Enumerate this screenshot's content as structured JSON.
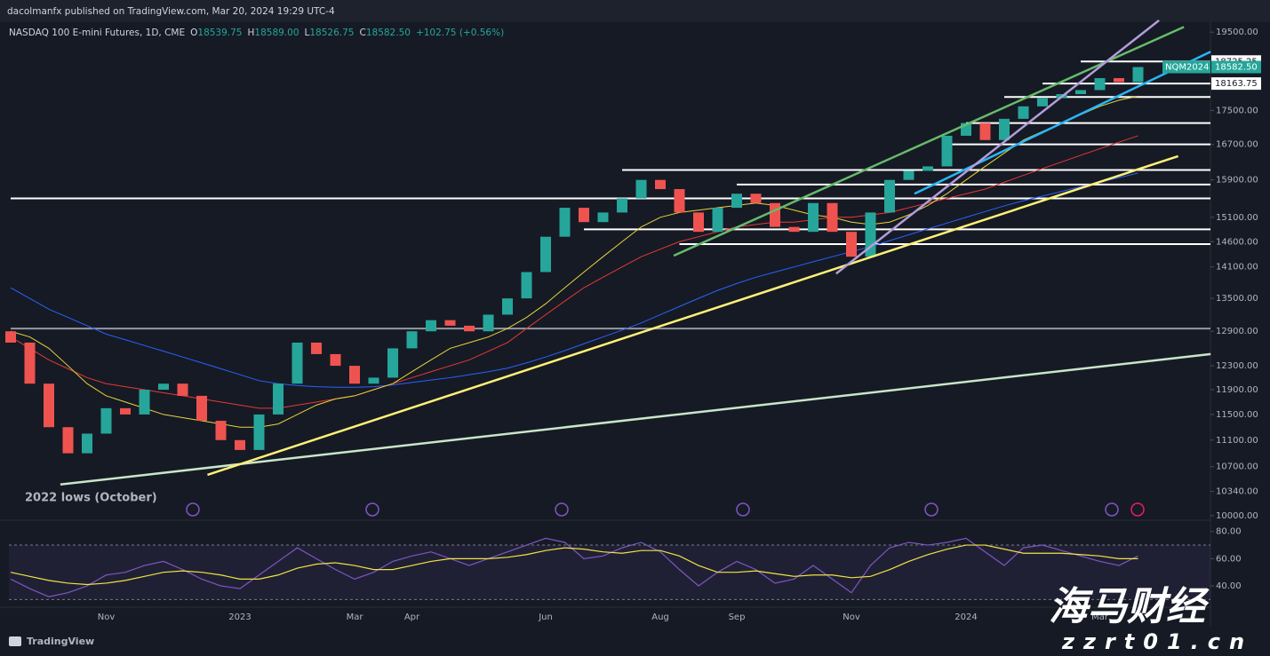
{
  "header": {
    "published": "dacolmanfx published on TradingView.com, Mar 20, 2024 19:29 UTC-4"
  },
  "footer": {
    "brand": "TradingView"
  },
  "watermark": {
    "title": "海马财经",
    "site": "zzrt01.cn"
  },
  "chart_data": [
    {
      "type": "candlestick",
      "title": "NASDAQ 100 E-mini Futures, 1D, CME",
      "ohlc_legend": [
        {
          "key": "O",
          "value": "18539.75"
        },
        {
          "key": "H",
          "value": "18589.00"
        },
        {
          "key": "L",
          "value": "18526.75"
        },
        {
          "key": "C",
          "value": "18582.50"
        }
      ],
      "change": "+102.75 (+0.56%)",
      "annotation": "2022 lows (October)",
      "categories": [
        null,
        null,
        null,
        null,
        null,
        "Nov",
        null,
        null,
        null,
        null,
        null,
        null,
        "2023",
        null,
        null,
        null,
        null,
        null,
        "Mar",
        null,
        null,
        "Apr",
        null,
        null,
        null,
        null,
        null,
        null,
        "Jun",
        null,
        null,
        null,
        null,
        null,
        "Aug",
        null,
        null,
        null,
        "Sep",
        null,
        null,
        null,
        null,
        null,
        "Nov",
        null,
        null,
        null,
        null,
        null,
        "2024",
        null,
        null,
        null,
        null,
        null,
        null,
        "Mar",
        null,
        null
      ],
      "open": [
        12900,
        12700,
        12000,
        11300,
        10900,
        11200,
        11600,
        11500,
        11900,
        12000,
        11800,
        11400,
        11100,
        10950,
        11500,
        12000,
        12700,
        12500,
        12300,
        12000,
        12100,
        12600,
        12900,
        13100,
        13000,
        12900,
        13200,
        13500,
        14000,
        14700,
        15300,
        15000,
        15200,
        15500,
        15900,
        15700,
        15200,
        14800,
        15300,
        15600,
        15400,
        14900,
        14800,
        15400,
        14800,
        14300,
        15200,
        15900,
        16100,
        16200,
        16900,
        17200,
        16800,
        17300,
        17600,
        17800,
        17900,
        18000,
        18300,
        18200
      ],
      "close": [
        12700,
        12000,
        11300,
        10900,
        11200,
        11600,
        11500,
        11900,
        12000,
        11800,
        11400,
        11100,
        10950,
        11500,
        12000,
        12700,
        12500,
        12300,
        12000,
        12100,
        12600,
        12900,
        13100,
        13000,
        12900,
        13200,
        13500,
        14000,
        14700,
        15300,
        15000,
        15200,
        15500,
        15900,
        15700,
        15200,
        14800,
        15300,
        15600,
        15400,
        14900,
        14800,
        15400,
        14800,
        14300,
        15200,
        15900,
        16100,
        16200,
        16900,
        17200,
        16800,
        17300,
        17600,
        17800,
        17900,
        18000,
        18300,
        18200,
        18582.5
      ],
      "up_color": "#26a69a",
      "down_color": "#ef5350",
      "log_scale": true,
      "ylim": [
        9950,
        19770
      ],
      "yticks": [
        {
          "value": 19500,
          "label": "19500.00"
        },
        {
          "value": 17500,
          "label": "17500.00"
        },
        {
          "value": 16700,
          "label": "16700.00"
        },
        {
          "value": 15900,
          "label": "15900.00"
        },
        {
          "value": 15100,
          "label": "15100.00"
        },
        {
          "value": 14600,
          "label": "14600.00"
        },
        {
          "value": 14100,
          "label": "14100.00"
        },
        {
          "value": 13500,
          "label": "13500.00"
        },
        {
          "value": 12900,
          "label": "12900.00"
        },
        {
          "value": 12300,
          "label": "12300.00"
        },
        {
          "value": 11900,
          "label": "11900.00"
        },
        {
          "value": 11500,
          "label": "11500.00"
        },
        {
          "value": 11100,
          "label": "11100.00"
        },
        {
          "value": 10700,
          "label": "10700.00"
        },
        {
          "value": 10340,
          "label": "10340.00"
        },
        {
          "value": 10000,
          "label": "10000.00"
        }
      ],
      "overlays": [
        {
          "color": "#2962ff",
          "values": [
            13700,
            13500,
            13300,
            13150,
            13000,
            12850,
            12750,
            12650,
            12550,
            12450,
            12350,
            12250,
            12150,
            12050,
            12000,
            11970,
            11950,
            11940,
            11940,
            11950,
            11980,
            12020,
            12060,
            12100,
            12150,
            12200,
            12260,
            12350,
            12450,
            12560,
            12680,
            12800,
            12920,
            13050,
            13200,
            13350,
            13500,
            13650,
            13780,
            13900,
            14000,
            14100,
            14200,
            14300,
            14400,
            14500,
            14620,
            14740,
            14860,
            14980,
            15100,
            15220,
            15340,
            15450,
            15550,
            15650,
            15750,
            15850,
            15950,
            16050
          ]
        },
        {
          "color": "#e53935",
          "values": [
            12800,
            12600,
            12400,
            12250,
            12100,
            12000,
            11950,
            11900,
            11850,
            11800,
            11750,
            11700,
            11650,
            11600,
            11600,
            11650,
            11700,
            11750,
            11800,
            11900,
            12000,
            12100,
            12200,
            12300,
            12400,
            12550,
            12700,
            12950,
            13200,
            13450,
            13700,
            13900,
            14100,
            14300,
            14450,
            14600,
            14700,
            14800,
            14900,
            14950,
            15000,
            15000,
            15050,
            15100,
            15100,
            15150,
            15200,
            15300,
            15400,
            15500,
            15600,
            15700,
            15850,
            16000,
            16150,
            16300,
            16450,
            16600,
            16750,
            16900
          ]
        },
        {
          "color": "#e6d43a",
          "values": [
            12900,
            12800,
            12600,
            12300,
            12000,
            11800,
            11700,
            11600,
            11500,
            11450,
            11400,
            11350,
            11300,
            11300,
            11350,
            11500,
            11650,
            11750,
            11800,
            11900,
            12000,
            12200,
            12400,
            12600,
            12700,
            12800,
            12950,
            13150,
            13400,
            13700,
            14000,
            14300,
            14600,
            14900,
            15100,
            15200,
            15250,
            15300,
            15350,
            15400,
            15350,
            15250,
            15150,
            15100,
            15000,
            14950,
            15000,
            15150,
            15350,
            15600,
            15900,
            16200,
            16500,
            16800,
            17000,
            17200,
            17400,
            17600,
            17750,
            17850
          ]
        }
      ],
      "levels": [
        {
          "value": 18725.25,
          "start": 56,
          "color": "#ffffff",
          "tag": true
        },
        {
          "value": 18163.75,
          "start": 54,
          "color": "#ffffff",
          "tag": true
        },
        {
          "value": 17830,
          "start": 52,
          "color": "#ffffff"
        },
        {
          "value": 17200,
          "start": 50,
          "color": "#ffffff"
        },
        {
          "value": 16700,
          "start": 49,
          "color": "#ffffff"
        },
        {
          "value": 16120,
          "start": 32,
          "color": "#ffffff"
        },
        {
          "value": 15800,
          "start": 38,
          "color": "#ffffff"
        },
        {
          "value": 15500,
          "start": 0,
          "color": "#ffffff"
        },
        {
          "value": 14850,
          "start": 30,
          "color": "#ffffff"
        },
        {
          "value": 14550,
          "start": 35,
          "color": "#ffffff"
        },
        {
          "value": 12950,
          "start": 0,
          "color": "#9598a1"
        }
      ],
      "trendlines": [
        {
          "color": "#c8e6c9",
          "points": [
            [
              2.6,
              10440
            ],
            [
              62.8,
              12500
            ]
          ]
        },
        {
          "color": "#fff176",
          "points": [
            [
              10.3,
              10580
            ],
            [
              61.1,
              16430
            ]
          ]
        },
        {
          "color": "#66bb6a",
          "points": [
            [
              34.7,
              14320
            ],
            [
              61.4,
              19640
            ]
          ]
        },
        {
          "color": "#29b6f6",
          "points": [
            [
              47.3,
              15600
            ],
            [
              62.8,
              18980
            ]
          ]
        },
        {
          "color": "#b39ddb",
          "points": [
            [
              43.2,
              13970
            ],
            [
              60.1,
              19820
            ]
          ]
        }
      ],
      "last_price": {
        "symbol": "NQM2024",
        "value": 18582.5,
        "label": "18582.50",
        "color": "#26a69a"
      }
    },
    {
      "type": "line",
      "ylim": [
        25,
        87
      ],
      "yticks": [
        {
          "value": 80,
          "label": "80.00"
        },
        {
          "value": 60,
          "label": "60.00"
        },
        {
          "value": 40,
          "label": "40.00"
        }
      ],
      "band": [
        30,
        70
      ],
      "series": [
        {
          "color": "#7e57c2",
          "values": [
            45,
            38,
            32,
            35,
            40,
            48,
            50,
            55,
            58,
            52,
            45,
            40,
            38,
            48,
            58,
            68,
            60,
            52,
            45,
            50,
            58,
            62,
            65,
            60,
            55,
            60,
            65,
            70,
            75,
            72,
            60,
            62,
            68,
            72,
            65,
            52,
            40,
            50,
            58,
            52,
            42,
            45,
            55,
            45,
            35,
            55,
            68,
            72,
            70,
            72,
            75,
            65,
            55,
            68,
            70,
            66,
            62,
            58,
            55,
            62
          ]
        },
        {
          "color": "#f0e442",
          "values": [
            50,
            47,
            44,
            42,
            41,
            42,
            44,
            47,
            50,
            51,
            50,
            48,
            45,
            45,
            48,
            53,
            56,
            57,
            55,
            52,
            52,
            55,
            58,
            60,
            60,
            60,
            61,
            63,
            66,
            68,
            67,
            65,
            64,
            66,
            66,
            62,
            55,
            50,
            50,
            51,
            49,
            47,
            48,
            48,
            46,
            47,
            52,
            58,
            63,
            67,
            70,
            70,
            67,
            64,
            64,
            64,
            63,
            62,
            60,
            60
          ]
        }
      ]
    }
  ]
}
